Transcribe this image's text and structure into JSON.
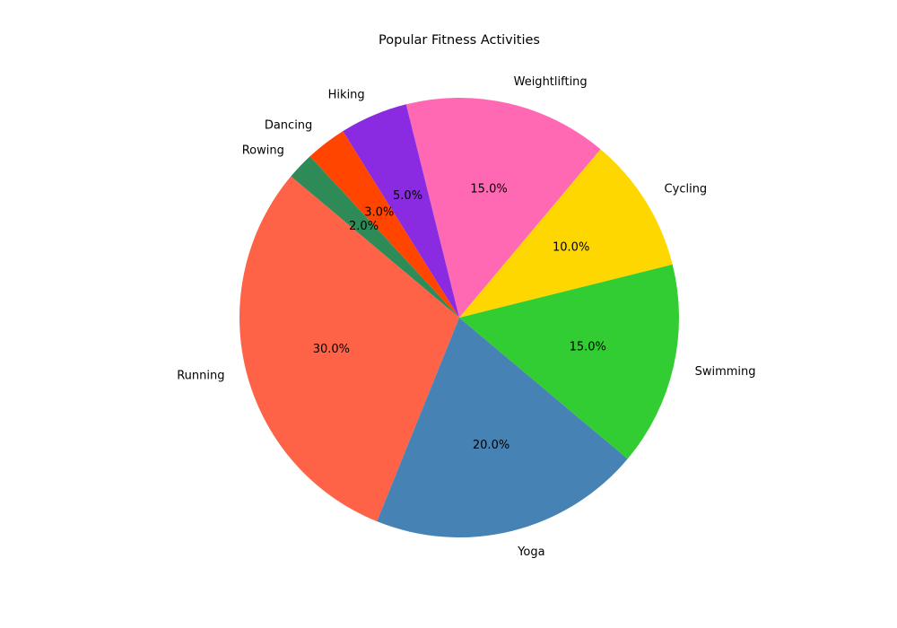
{
  "chart_data": {
    "type": "pie",
    "title": "Popular Fitness Activities",
    "categories": [
      "Running",
      "Yoga",
      "Swimming",
      "Cycling",
      "Weightlifting",
      "Hiking",
      "Dancing",
      "Rowing"
    ],
    "values": [
      30,
      20,
      15,
      10,
      15,
      5,
      3,
      2
    ],
    "percent_labels": [
      "30.0%",
      "20.0%",
      "15.0%",
      "10.0%",
      "15.0%",
      "5.0%",
      "3.0%",
      "2.0%"
    ],
    "colors": [
      "#ff6347",
      "#4682b4",
      "#32cd32",
      "#ffd700",
      "#ff69b4",
      "#8a2be2",
      "#ff4500",
      "#2e8b57"
    ],
    "start_angle_deg": 140,
    "direction": "counterclockwise",
    "legend": "none"
  }
}
